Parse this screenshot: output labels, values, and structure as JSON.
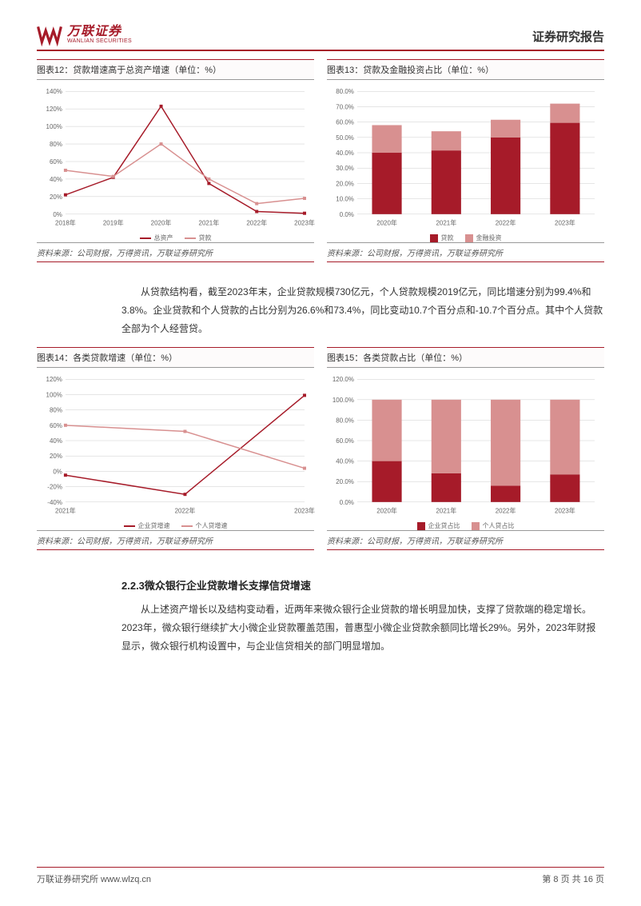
{
  "header": {
    "logo_cn": "万联证券",
    "logo_en": "WANLIAN SECURITIES",
    "report_title": "证券研究报告"
  },
  "fig12": {
    "title": "图表12：贷款增速高于总资产增速（单位：%）",
    "type": "line",
    "categories": [
      "2018年",
      "2019年",
      "2020年",
      "2021年",
      "2022年",
      "2023年"
    ],
    "series": [
      {
        "name": "总资产",
        "color": "#a61b29",
        "values": [
          22,
          42,
          123,
          35,
          3,
          1
        ]
      },
      {
        "name": "贷款",
        "color": "#d89090",
        "values": [
          50,
          43,
          80,
          40,
          12,
          18
        ]
      }
    ],
    "ylim": [
      0,
      140
    ],
    "ytick_step": 20,
    "grid_color": "#cccccc",
    "label_fontsize": 8
  },
  "fig13": {
    "title": "图表13：贷款及金融投资占比（单位：%）",
    "type": "stacked-bar",
    "categories": [
      "2020年",
      "2021年",
      "2022年",
      "2023年"
    ],
    "series": [
      {
        "name": "贷款",
        "color": "#a61b29",
        "values": [
          40.0,
          41.5,
          50.0,
          59.5
        ]
      },
      {
        "name": "金融投资",
        "color": "#d89090",
        "values": [
          18.0,
          12.5,
          11.5,
          12.5
        ]
      }
    ],
    "ylim": [
      0,
      80
    ],
    "ytick_step": 10,
    "bar_width": 0.5,
    "grid_color": "#cccccc",
    "label_fontsize": 8
  },
  "source": "资料来源：公司财报，万得资讯，万联证券研究所",
  "para1": "从贷款结构看，截至2023年末，企业贷款规模730亿元，个人贷款规模2019亿元，同比增速分别为99.4%和3.8%。企业贷款和个人贷款的占比分别为26.6%和73.4%，同比变动10.7个百分点和-10.7个百分点。其中个人贷款全部为个人经营贷。",
  "fig14": {
    "title": "图表14：各类贷款增速（单位：%）",
    "type": "line",
    "categories": [
      "2021年",
      "2022年",
      "2023年"
    ],
    "series": [
      {
        "name": "企业贷增速",
        "color": "#a61b29",
        "values": [
          -5,
          -30,
          99
        ]
      },
      {
        "name": "个人贷增速",
        "color": "#d89090",
        "values": [
          60,
          52,
          4
        ]
      }
    ],
    "ylim": [
      -40,
      120
    ],
    "ytick_step": 20,
    "grid_color": "#cccccc",
    "label_fontsize": 8
  },
  "fig15": {
    "title": "图表15：各类贷款占比（单位：%）",
    "type": "stacked-bar",
    "categories": [
      "2020年",
      "2021年",
      "2022年",
      "2023年"
    ],
    "series": [
      {
        "name": "企业贷占比",
        "color": "#a61b29",
        "values": [
          40,
          28,
          16,
          27
        ]
      },
      {
        "name": "个人贷占比",
        "color": "#d89090",
        "values": [
          60,
          72,
          84,
          73
        ]
      }
    ],
    "ylim": [
      0,
      120
    ],
    "ytick_step": 20,
    "bar_width": 0.5,
    "grid_color": "#cccccc",
    "label_fontsize": 8
  },
  "section_223": {
    "heading": "2.2.3微众银行企业贷款增长支撑信贷增速",
    "body": "从上述资产增长以及结构变动看，近两年来微众银行企业贷款的增长明显加快，支撑了贷款端的稳定增长。2023年，微众银行继续扩大小微企业贷款覆盖范围，普惠型小微企业贷款余额同比增长29%。另外，2023年财报显示，微众银行机构设置中，与企业信贷相关的部门明显增加。"
  },
  "footer": {
    "left": "万联证券研究所   www.wlzq.cn",
    "right": "第 8 页 共 16 页"
  }
}
